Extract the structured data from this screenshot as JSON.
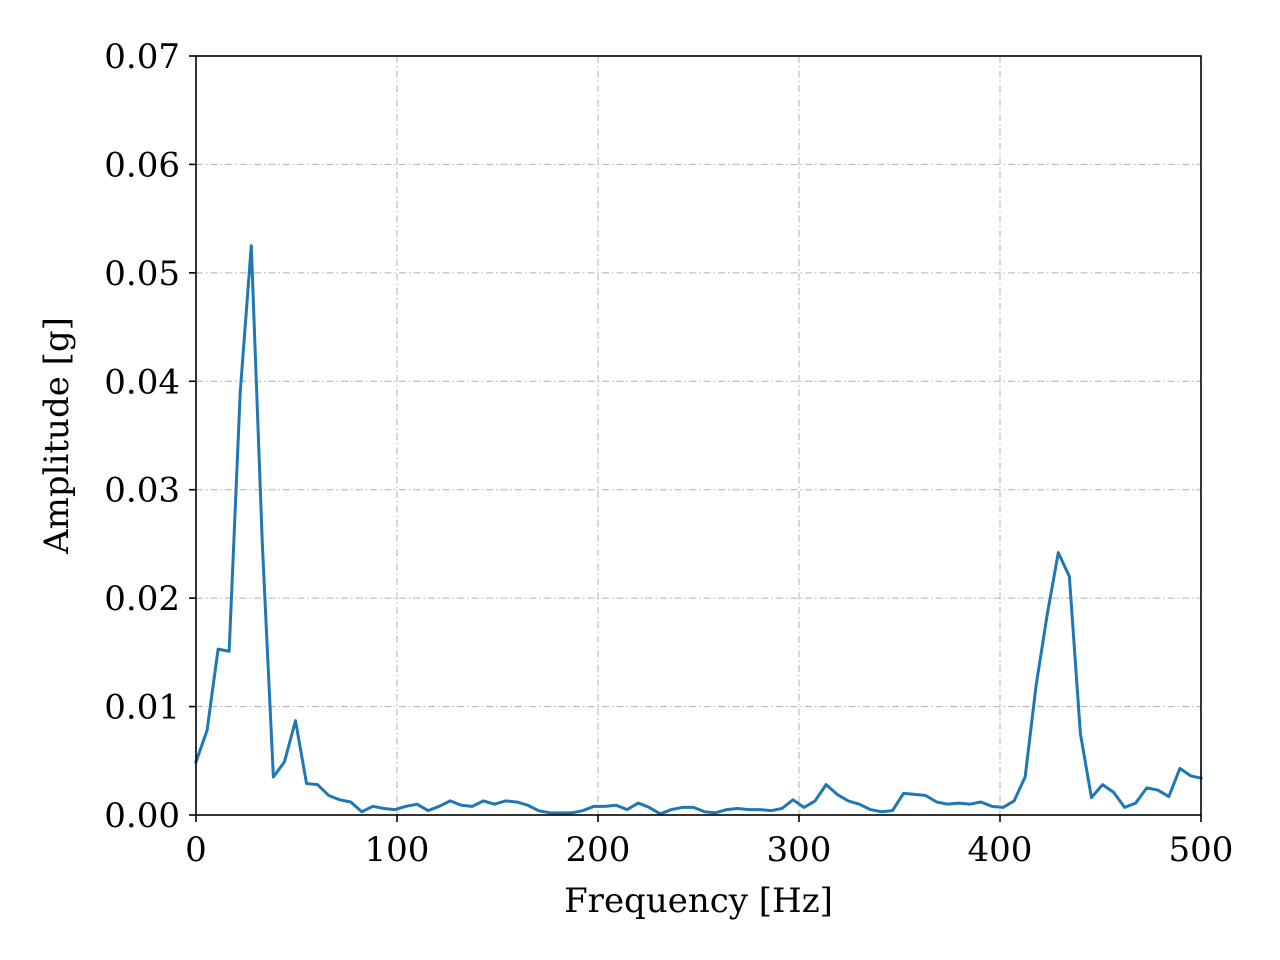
{
  "chart_data": {
    "type": "line",
    "title": "",
    "xlabel": "Frequency [Hz]",
    "ylabel": "Amplitude [g]",
    "xlim": [
      0,
      500
    ],
    "ylim": [
      0,
      0.07
    ],
    "xticks": [
      0,
      100,
      200,
      300,
      400,
      500
    ],
    "xtick_labels": [
      "0",
      "100",
      "200",
      "300",
      "400",
      "500"
    ],
    "yticks": [
      0,
      0.01,
      0.02,
      0.03,
      0.04,
      0.05,
      0.06,
      0.07
    ],
    "ytick_labels": [
      "0.00",
      "0.01",
      "0.02",
      "0.03",
      "0.04",
      "0.05",
      "0.06",
      "0.07"
    ],
    "grid": true,
    "legend": "none",
    "series": [
      {
        "color": "#1f77b4",
        "x": [
          0,
          5.5,
          11,
          16.5,
          22,
          27.5,
          33,
          38.5,
          44,
          49.5,
          55,
          60.5,
          66,
          71.5,
          77,
          82.5,
          88,
          93.5,
          99,
          104.5,
          110,
          115.5,
          121,
          126.5,
          132,
          137.5,
          143,
          148.5,
          154,
          159.5,
          165,
          170.5,
          176,
          181.5,
          187,
          192.5,
          198,
          203.5,
          209,
          214.5,
          220,
          225.5,
          231,
          236.5,
          242,
          247.5,
          253,
          258.5,
          264,
          269.5,
          275,
          280.5,
          286,
          291.5,
          297,
          302.5,
          308,
          313.5,
          319,
          324.5,
          330,
          335.5,
          341,
          346.5,
          352,
          357.5,
          363,
          368.5,
          374,
          379.5,
          385,
          390.5,
          396,
          401.5,
          407,
          412.5,
          418,
          423.5,
          429,
          434.5,
          440,
          445.5,
          451,
          456.5,
          462,
          467.5,
          473,
          478.5,
          484,
          489.5,
          495,
          500
        ],
        "y": [
          0.0049,
          0.0078,
          0.0153,
          0.0151,
          0.039,
          0.0525,
          0.025,
          0.0035,
          0.0049,
          0.0087,
          0.0029,
          0.0028,
          0.0018,
          0.0014,
          0.0012,
          0.0003,
          0.0008,
          0.0006,
          0.0005,
          0.0008,
          0.001,
          0.0004,
          0.0008,
          0.0013,
          0.0009,
          0.0008,
          0.0013,
          0.001,
          0.0013,
          0.0012,
          0.0009,
          0.0004,
          0.0002,
          0.0002,
          0.0002,
          0.0004,
          0.0008,
          0.0008,
          0.0009,
          0.0005,
          0.0011,
          0.0007,
          0.0001,
          0.0005,
          0.0007,
          0.0007,
          0.0003,
          0.0002,
          0.0005,
          0.0006,
          0.0005,
          0.0005,
          0.0004,
          0.0006,
          0.0014,
          0.0007,
          0.0013,
          0.0028,
          0.0019,
          0.0013,
          0.001,
          0.0005,
          0.0003,
          0.0004,
          0.002,
          0.0019,
          0.0018,
          0.0012,
          0.001,
          0.0011,
          0.001,
          0.0012,
          0.0008,
          0.0007,
          0.0013,
          0.0035,
          0.012,
          0.0185,
          0.0242,
          0.022,
          0.0075,
          0.0016,
          0.0028,
          0.0021,
          0.0007,
          0.0011,
          0.0025,
          0.0023,
          0.0017,
          0.0043,
          0.0036,
          0.0034
        ]
      }
    ]
  }
}
